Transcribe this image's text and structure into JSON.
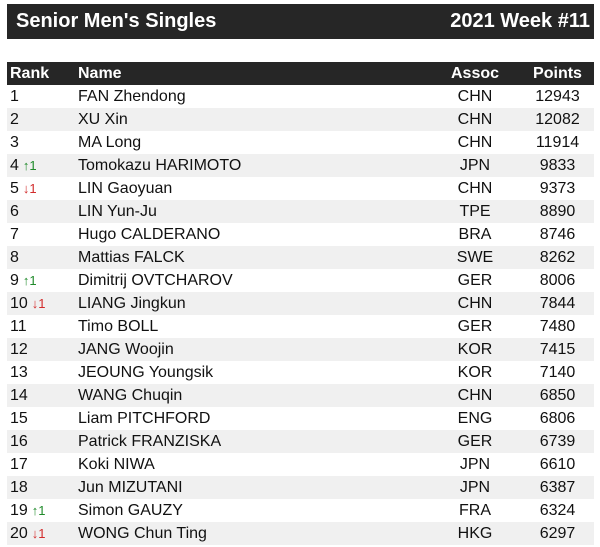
{
  "header": {
    "left_title": "Senior Men's Singles",
    "right_title": "2021 Week #11"
  },
  "columns": {
    "rank": "Rank",
    "name": "Name",
    "assoc": "Assoc",
    "points": "Points"
  },
  "rows": [
    {
      "rank": "1",
      "movement": "",
      "direction": "",
      "name": "FAN Zhendong",
      "assoc": "CHN",
      "points": "12943"
    },
    {
      "rank": "2",
      "movement": "",
      "direction": "",
      "name": "XU Xin",
      "assoc": "CHN",
      "points": "12082"
    },
    {
      "rank": "3",
      "movement": "",
      "direction": "",
      "name": "MA Long",
      "assoc": "CHN",
      "points": "11914"
    },
    {
      "rank": "4",
      "movement": "↑1",
      "direction": "up",
      "name": "Tomokazu HARIMOTO",
      "assoc": "JPN",
      "points": "9833"
    },
    {
      "rank": "5",
      "movement": "↓1",
      "direction": "down",
      "name": "LIN Gaoyuan",
      "assoc": "CHN",
      "points": "9373"
    },
    {
      "rank": "6",
      "movement": "",
      "direction": "",
      "name": "LIN Yun-Ju",
      "assoc": "TPE",
      "points": "8890"
    },
    {
      "rank": "7",
      "movement": "",
      "direction": "",
      "name": "Hugo CALDERANO",
      "assoc": "BRA",
      "points": "8746"
    },
    {
      "rank": "8",
      "movement": "",
      "direction": "",
      "name": "Mattias FALCK",
      "assoc": "SWE",
      "points": "8262"
    },
    {
      "rank": "9",
      "movement": "↑1",
      "direction": "up",
      "name": "Dimitrij OVTCHAROV",
      "assoc": "GER",
      "points": "8006"
    },
    {
      "rank": "10",
      "movement": "↓1",
      "direction": "down",
      "name": "LIANG Jingkun",
      "assoc": "CHN",
      "points": "7844"
    },
    {
      "rank": "11",
      "movement": "",
      "direction": "",
      "name": "Timo BOLL",
      "assoc": "GER",
      "points": "7480"
    },
    {
      "rank": "12",
      "movement": "",
      "direction": "",
      "name": "JANG Woojin",
      "assoc": "KOR",
      "points": "7415"
    },
    {
      "rank": "13",
      "movement": "",
      "direction": "",
      "name": "JEOUNG Youngsik",
      "assoc": "KOR",
      "points": "7140"
    },
    {
      "rank": "14",
      "movement": "",
      "direction": "",
      "name": "WANG Chuqin",
      "assoc": "CHN",
      "points": "6850"
    },
    {
      "rank": "15",
      "movement": "",
      "direction": "",
      "name": "Liam PITCHFORD",
      "assoc": "ENG",
      "points": "6806"
    },
    {
      "rank": "16",
      "movement": "",
      "direction": "",
      "name": "Patrick FRANZISKA",
      "assoc": "GER",
      "points": "6739"
    },
    {
      "rank": "17",
      "movement": "",
      "direction": "",
      "name": "Koki NIWA",
      "assoc": "JPN",
      "points": "6610"
    },
    {
      "rank": "18",
      "movement": "",
      "direction": "",
      "name": "Jun MIZUTANI",
      "assoc": "JPN",
      "points": "6387"
    },
    {
      "rank": "19",
      "movement": "↑1",
      "direction": "up",
      "name": "Simon GAUZY",
      "assoc": "FRA",
      "points": "6324"
    },
    {
      "rank": "20",
      "movement": "↓1",
      "direction": "down",
      "name": "WONG Chun Ting",
      "assoc": "HKG",
      "points": "6297"
    }
  ],
  "colors": {
    "header_bg": "#262626",
    "header_text": "#ffffff",
    "stripe": "#f0f0f0",
    "up": "#1f8a2a",
    "down": "#d22b2b"
  }
}
